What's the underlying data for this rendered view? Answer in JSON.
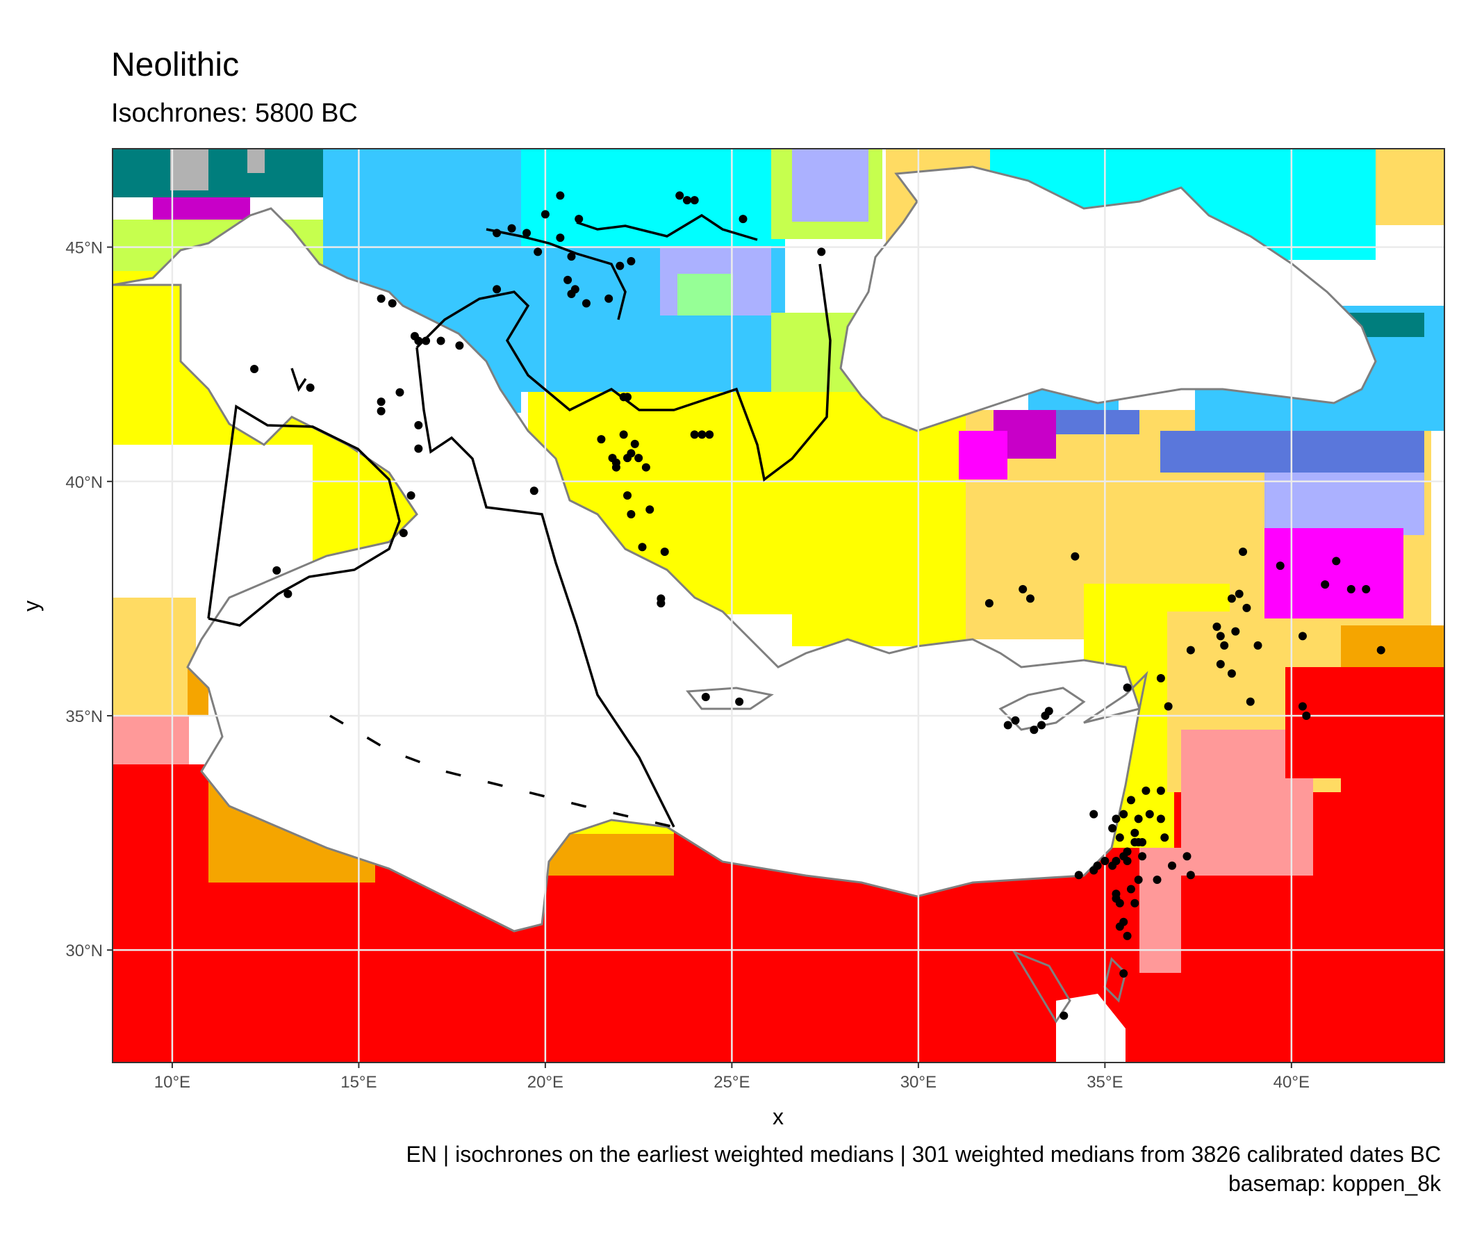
{
  "title": "Neolithic",
  "subtitle": "Isochrones: 5800 BC",
  "caption": {
    "line1": "EN | isochrones on the earliest weighted medians | 301 weighted medians from 3826 calibrated dates BC",
    "line2": "basemap: koppen_8k"
  },
  "axes": {
    "xlabel": "x",
    "ylabel": "y",
    "lon_range": [
      8.4,
      44.1
    ],
    "lat_range": [
      27.6,
      47.1
    ],
    "x_ticks": [
      {
        "value": 10,
        "label": "10°E"
      },
      {
        "value": 15,
        "label": "15°E"
      },
      {
        "value": 20,
        "label": "20°E"
      },
      {
        "value": 25,
        "label": "25°E"
      },
      {
        "value": 30,
        "label": "30°E"
      },
      {
        "value": 35,
        "label": "35°E"
      },
      {
        "value": 40,
        "label": "40°E"
      }
    ],
    "y_ticks": [
      {
        "value": 30,
        "label": "30°N"
      },
      {
        "value": 35,
        "label": "35°N"
      },
      {
        "value": 40,
        "label": "40°N"
      },
      {
        "value": 45,
        "label": "45°N"
      }
    ],
    "grid": true
  },
  "colors": {
    "panel_border": "#333333",
    "grid": "#ebebeb",
    "coastline": "#7f7f7f",
    "isochrone": "#000000",
    "site": "#000000",
    "BWh": "#ff0000",
    "BWk": "#ff9999",
    "BSh": "#f5a500",
    "BSk": "#ffdb63",
    "Csa": "#ffff00",
    "Csb": "#c6c700",
    "Cfa": "#c6ff4e",
    "Cfb": "#66ff33",
    "Dsa": "#ff00ff",
    "Dsb": "#c800c8",
    "Dfa": "#00ffff",
    "Dfb": "#38c7ff",
    "Dfc": "#007e7d",
    "Dwa": "#abb1ff",
    "Dwb": "#5a77db",
    "ET": "#b2b2b2",
    "Cwa": "#96ff96"
  }
}
